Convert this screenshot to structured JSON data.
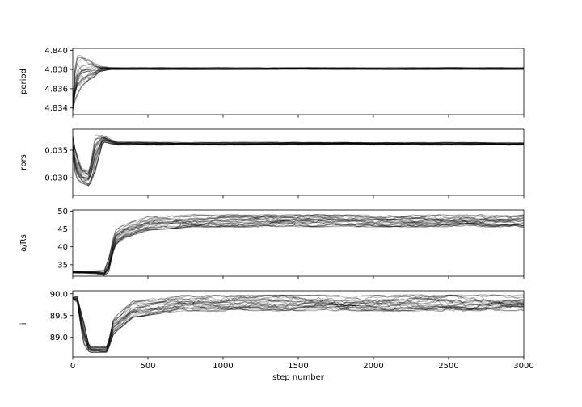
{
  "chart_data": {
    "type": "line",
    "description_note": "",
    "xlabel": "step number",
    "xlim": [
      0,
      3000
    ],
    "xticks": [
      0,
      500,
      1000,
      1500,
      2000,
      2500,
      3000
    ],
    "n_walkers_drawn": 24,
    "panels": [
      {
        "ylabel": "period",
        "ylim": [
          4.8333,
          4.8402
        ],
        "yticks": [
          4.834,
          4.836,
          4.838,
          4.84
        ],
        "tick_labels": [
          "4.834",
          "4.836",
          "4.838",
          "4.840"
        ],
        "band": [
          [
            0,
            4.8337,
            4.8347
          ],
          [
            20,
            4.835,
            4.8395
          ],
          [
            60,
            4.8362,
            4.8395
          ],
          [
            100,
            4.8368,
            4.8392
          ],
          [
            140,
            4.8372,
            4.8388
          ],
          [
            180,
            4.8378,
            4.8384
          ],
          [
            250,
            4.838,
            4.8382
          ],
          [
            3000,
            4.838,
            4.8382
          ]
        ]
      },
      {
        "ylabel": "rprs",
        "ylim": [
          0.0268,
          0.0388
        ],
        "yticks": [
          0.03,
          0.035
        ],
        "tick_labels": [
          "0.030",
          "0.035"
        ],
        "band": [
          [
            0,
            0.034,
            0.0378
          ],
          [
            20,
            0.03,
            0.035
          ],
          [
            60,
            0.029,
            0.0318
          ],
          [
            110,
            0.0284,
            0.0312
          ],
          [
            150,
            0.031,
            0.0378
          ],
          [
            200,
            0.0365,
            0.0378
          ],
          [
            250,
            0.0362,
            0.037
          ],
          [
            300,
            0.0359,
            0.0365
          ],
          [
            3000,
            0.0359,
            0.0364
          ]
        ]
      },
      {
        "ylabel": "a/Rs",
        "ylim": [
          31.8,
          50.3
        ],
        "yticks": [
          35,
          40,
          45,
          50
        ],
        "tick_labels": [
          "35",
          "40",
          "45",
          "50"
        ],
        "band": [
          [
            0,
            32.7,
            33.1
          ],
          [
            150,
            32.5,
            33.3
          ],
          [
            210,
            32.0,
            33.5
          ],
          [
            240,
            33.0,
            37.0
          ],
          [
            280,
            40.0,
            44.5
          ],
          [
            350,
            42.5,
            46.5
          ],
          [
            500,
            44.5,
            48.5
          ],
          [
            800,
            45.5,
            49.0
          ],
          [
            3000,
            45.5,
            49.0
          ]
        ]
      },
      {
        "ylabel": "i",
        "ylim": [
          88.55,
          90.07
        ],
        "yticks": [
          89.0,
          89.5,
          90.0
        ],
        "tick_labels": [
          "89.0",
          "89.5",
          "90.0"
        ],
        "band": [
          [
            0,
            89.88,
            89.92
          ],
          [
            30,
            89.8,
            89.95
          ],
          [
            70,
            88.85,
            89.45
          ],
          [
            110,
            88.65,
            88.8
          ],
          [
            230,
            88.65,
            88.8
          ],
          [
            270,
            89.05,
            89.45
          ],
          [
            400,
            89.45,
            89.85
          ],
          [
            700,
            89.6,
            89.97
          ],
          [
            3000,
            89.6,
            89.98
          ]
        ]
      }
    ]
  }
}
